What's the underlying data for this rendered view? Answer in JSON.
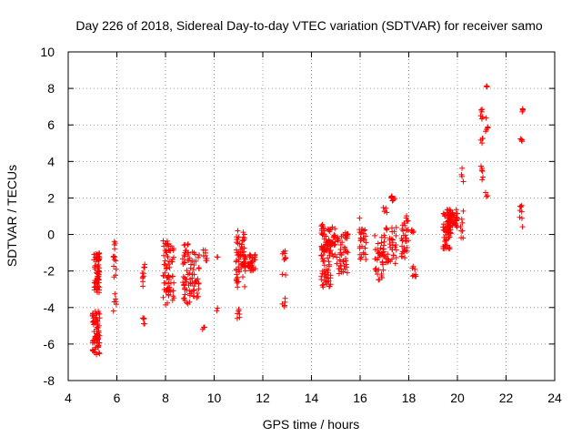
{
  "chart_data": {
    "type": "scatter",
    "title": "Day 226 of 2018, Sidereal Day-to-day VTEC variation (SDTVAR) for receiver samo",
    "xlabel": "GPS time / hours",
    "ylabel": "SDTVAR / TECUs",
    "xlim": [
      4,
      24
    ],
    "ylim": [
      -8,
      10
    ],
    "xticks": [
      "4",
      "6",
      "8",
      "10",
      "12",
      "14",
      "16",
      "18",
      "20",
      "22",
      "24"
    ],
    "yticks": [
      "-8",
      "-6",
      "-4",
      "-2",
      "0",
      "2",
      "4",
      "6",
      "8",
      "10"
    ],
    "grid": true,
    "marker": "plus",
    "color": "#ff0000",
    "series": [
      {
        "name": "SDTVAR",
        "clusters": [
          {
            "x": [
              5.0,
              5.3
            ],
            "y": [
              -6.6,
              -4.2
            ],
            "n": 70
          },
          {
            "x": [
              5.05,
              5.3
            ],
            "y": [
              -3.2,
              -1.0
            ],
            "n": 60
          },
          {
            "x": [
              5.85,
              5.98
            ],
            "y": [
              -2.4,
              -0.1
            ],
            "n": 14
          },
          {
            "x": [
              5.85,
              5.98
            ],
            "y": [
              -4.4,
              -3.2
            ],
            "n": 6
          },
          {
            "x": [
              7.05,
              7.15
            ],
            "y": [
              -2.9,
              -1.6
            ],
            "n": 10
          },
          {
            "x": [
              7.05,
              7.15
            ],
            "y": [
              -5.0,
              -4.5
            ],
            "n": 5
          },
          {
            "x": [
              7.9,
              8.35
            ],
            "y": [
              -3.9,
              -0.3
            ],
            "n": 70
          },
          {
            "x": [
              8.7,
              9.0
            ],
            "y": [
              -3.8,
              -0.5
            ],
            "n": 45
          },
          {
            "x": [
              9.0,
              9.4
            ],
            "y": [
              -3.5,
              -0.6
            ],
            "n": 40
          },
          {
            "x": [
              9.5,
              9.7
            ],
            "y": [
              -1.5,
              -0.8
            ],
            "n": 8
          },
          {
            "x": [
              9.5,
              9.65
            ],
            "y": [
              -5.2,
              -5.0
            ],
            "n": 3
          },
          {
            "x": [
              10.1,
              10.15
            ],
            "y": [
              -1.3,
              -1.1
            ],
            "n": 2
          },
          {
            "x": [
              10.1,
              10.15
            ],
            "y": [
              -4.2,
              -4.0
            ],
            "n": 2
          },
          {
            "x": [
              10.9,
              11.3
            ],
            "y": [
              -2.9,
              0.2
            ],
            "n": 60
          },
          {
            "x": [
              11.2,
              11.7
            ],
            "y": [
              -2.0,
              -1.1
            ],
            "n": 40
          },
          {
            "x": [
              10.95,
              11.1
            ],
            "y": [
              -4.6,
              -4.0
            ],
            "n": 6
          },
          {
            "x": [
              12.8,
              12.95
            ],
            "y": [
              -2.4,
              -0.9
            ],
            "n": 10
          },
          {
            "x": [
              12.8,
              12.95
            ],
            "y": [
              -4.0,
              -3.4
            ],
            "n": 5
          },
          {
            "x": [
              14.4,
              14.8
            ],
            "y": [
              -2.9,
              -0.4
            ],
            "n": 55
          },
          {
            "x": [
              14.4,
              15.0
            ],
            "y": [
              -1.2,
              0.6
            ],
            "n": 55
          },
          {
            "x": [
              15.0,
              15.5
            ],
            "y": [
              -2.3,
              -0.1
            ],
            "n": 40
          },
          {
            "x": [
              15.3,
              15.5
            ],
            "y": [
              -0.2,
              0.1
            ],
            "n": 8
          },
          {
            "x": [
              15.95,
              16.25
            ],
            "y": [
              -1.4,
              0.9
            ],
            "n": 30
          },
          {
            "x": [
              16.6,
              17.0
            ],
            "y": [
              -2.5,
              0.0
            ],
            "n": 40
          },
          {
            "x": [
              17.0,
              17.5
            ],
            "y": [
              -1.7,
              0.4
            ],
            "n": 35
          },
          {
            "x": [
              17.25,
              17.45
            ],
            "y": [
              1.8,
              2.1
            ],
            "n": 10
          },
          {
            "x": [
              16.95,
              17.1
            ],
            "y": [
              1.2,
              1.6
            ],
            "n": 5
          },
          {
            "x": [
              17.7,
              18.0
            ],
            "y": [
              -1.3,
              1.1
            ],
            "n": 35
          },
          {
            "x": [
              18.1,
              18.3
            ],
            "y": [
              -2.4,
              -1.5
            ],
            "n": 8
          },
          {
            "x": [
              18.1,
              18.3
            ],
            "y": [
              0.1,
              0.3
            ],
            "n": 5
          },
          {
            "x": [
              19.4,
              19.75
            ],
            "y": [
              -0.8,
              1.4
            ],
            "n": 60
          },
          {
            "x": [
              19.6,
              20.0
            ],
            "y": [
              0.4,
              1.4
            ],
            "n": 50
          },
          {
            "x": [
              20.1,
              20.25
            ],
            "y": [
              -0.3,
              1.3
            ],
            "n": 8
          },
          {
            "x": [
              20.15,
              20.25
            ],
            "y": [
              2.4,
              3.8
            ],
            "n": 4
          },
          {
            "x": [
              20.95,
              21.05
            ],
            "y": [
              3.0,
              3.8
            ],
            "n": 6
          },
          {
            "x": [
              20.95,
              21.05
            ],
            "y": [
              5.0,
              5.4
            ],
            "n": 4
          },
          {
            "x": [
              20.95,
              21.05
            ],
            "y": [
              6.2,
              7.3
            ],
            "n": 6
          },
          {
            "x": [
              21.15,
              21.25
            ],
            "y": [
              2.0,
              2.3
            ],
            "n": 3
          },
          {
            "x": [
              21.15,
              21.25
            ],
            "y": [
              5.4,
              6.4
            ],
            "n": 5
          },
          {
            "x": [
              21.15,
              21.25
            ],
            "y": [
              8.0,
              8.2
            ],
            "n": 3
          },
          {
            "x": [
              22.55,
              22.7
            ],
            "y": [
              0.4,
              1.6
            ],
            "n": 8
          },
          {
            "x": [
              22.55,
              22.7
            ],
            "y": [
              5.1,
              5.3
            ],
            "n": 5
          },
          {
            "x": [
              22.55,
              22.7
            ],
            "y": [
              6.7,
              6.9
            ],
            "n": 4
          }
        ]
      }
    ]
  }
}
